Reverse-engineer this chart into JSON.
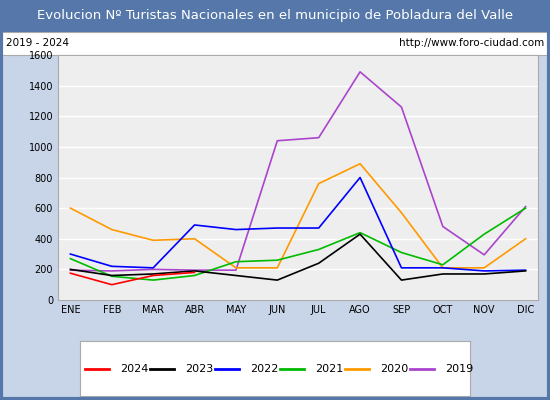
{
  "title": "Evolucion Nº Turistas Nacionales en el municipio de Pobladura del Valle",
  "subtitle_left": "2019 - 2024",
  "subtitle_right": "http://www.foro-ciudad.com",
  "months": [
    "ENE",
    "FEB",
    "MAR",
    "ABR",
    "MAY",
    "JUN",
    "JUL",
    "AGO",
    "SEP",
    "OCT",
    "NOV",
    "DIC"
  ],
  "series": {
    "2024": [
      175,
      100,
      160,
      180,
      null,
      null,
      null,
      null,
      null,
      null,
      null,
      null
    ],
    "2023": [
      200,
      160,
      170,
      190,
      160,
      130,
      240,
      430,
      130,
      170,
      170,
      190
    ],
    "2022": [
      300,
      220,
      210,
      490,
      460,
      470,
      470,
      800,
      210,
      210,
      190,
      195
    ],
    "2021": [
      270,
      155,
      130,
      160,
      250,
      260,
      330,
      440,
      310,
      230,
      430,
      600
    ],
    "2020": [
      600,
      460,
      390,
      400,
      210,
      210,
      760,
      890,
      570,
      210,
      210,
      400
    ],
    "2019": [
      195,
      190,
      200,
      195,
      195,
      1040,
      1060,
      1490,
      1260,
      480,
      295,
      610
    ]
  },
  "colors": {
    "2024": "#ff0000",
    "2023": "#000000",
    "2022": "#0000ff",
    "2021": "#00bb00",
    "2020": "#ff9900",
    "2019": "#aa44cc"
  },
  "ylim": [
    0,
    1600
  ],
  "yticks": [
    0,
    200,
    400,
    600,
    800,
    1000,
    1200,
    1400,
    1600
  ],
  "title_bg_color": "#5577aa",
  "title_text_color": "#ffffff",
  "plot_bg_color": "#eeeeee",
  "outer_bg_color": "#c8d4e8",
  "grid_color": "#ffffff",
  "subtitle_bg_color": "#ffffff",
  "border_color": "#5577aa"
}
